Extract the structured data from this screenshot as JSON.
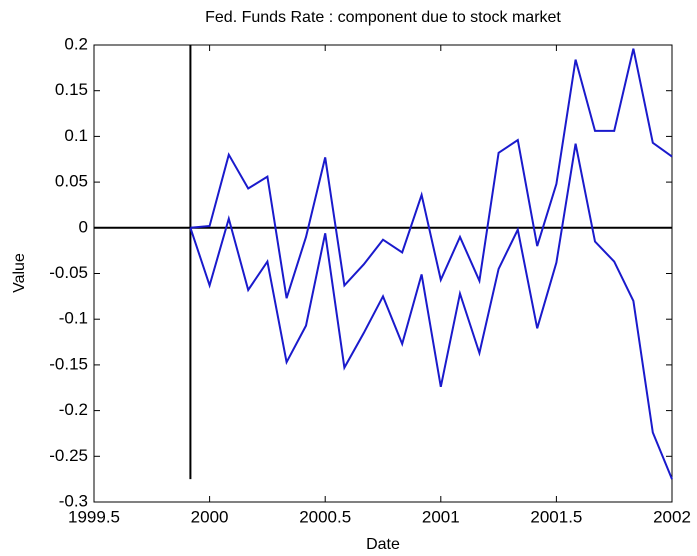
{
  "chart_data": {
    "type": "line",
    "title": "Fed. Funds Rate : component due to stock market",
    "xlabel": "Date",
    "ylabel": "Value",
    "x": [
      1999.917,
      2000,
      2000.083,
      2000.167,
      2000.25,
      2000.333,
      2000.417,
      2000.5,
      2000.583,
      2000.667,
      2000.75,
      2000.833,
      2000.917,
      2001,
      2001.083,
      2001.167,
      2001.25,
      2001.333,
      2001.417,
      2001.5,
      2001.583,
      2001.667,
      2001.75,
      2001.833,
      2001.917,
      2002
    ],
    "series": [
      {
        "color": "#1a1acc",
        "values": [
          0,
          0.002,
          0.08,
          0.043,
          0.056,
          -0.077,
          -0.01,
          0.077,
          -0.063,
          -0.04,
          -0.013,
          -0.027,
          0.036,
          -0.057,
          -0.01,
          -0.058,
          0.082,
          0.096,
          -0.02,
          0.048,
          0.184,
          0.106,
          0.106,
          0.196,
          0.093,
          0.078
        ]
      },
      {
        "color": "#1a1acc",
        "values": [
          0,
          -0.063,
          0.01,
          -0.068,
          -0.037,
          -0.147,
          -0.107,
          -0.006,
          -0.153,
          -0.115,
          -0.075,
          -0.127,
          -0.051,
          -0.174,
          -0.072,
          -0.137,
          -0.045,
          -0.002,
          -0.11,
          -0.038,
          0.092,
          -0.015,
          -0.037,
          -0.08,
          -0.224,
          -0.275
        ]
      }
    ],
    "hline": {
      "y": 0,
      "color": "#000000"
    },
    "vline": {
      "x": 1999.917,
      "ymin": -0.275,
      "color": "#000000"
    },
    "xlim": [
      1999.5,
      2002
    ],
    "xticks": [
      1999.5,
      2000,
      2000.5,
      2001,
      2001.5,
      2002
    ],
    "ylim": [
      -0.3,
      0.2
    ],
    "yticks": [
      -0.3,
      -0.25,
      -0.2,
      -0.15,
      -0.1,
      -0.05,
      0,
      0.05,
      0.1,
      0.15,
      0.2
    ]
  }
}
